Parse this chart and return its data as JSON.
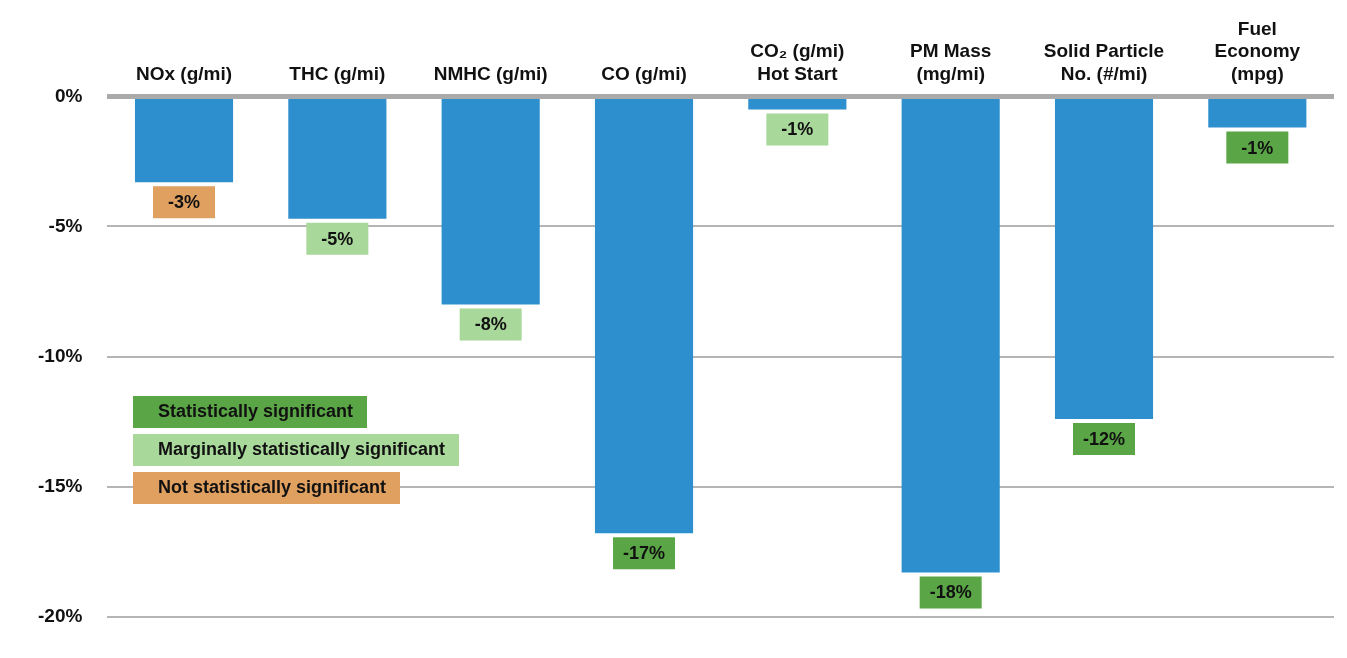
{
  "chart_data": {
    "type": "bar",
    "categories": [
      "NOx (g/mi)",
      "THC (g/mi)",
      "NMHC (g/mi)",
      "CO (g/mi)",
      "CO₂ (g/mi)\nHot Start",
      "PM Mass\n(mg/mi)",
      "Solid Particle\nNo. (#/mi)",
      "Fuel\nEconomy\n(mpg)"
    ],
    "series": [
      {
        "color": "#2e8fcf",
        "values": [
          -3.3,
          -4.7,
          -8.0,
          -16.8,
          -0.5,
          -18.3,
          -12.4,
          -1.2
        ]
      },
      {
        "name": "Statistically significant",
        "color": "#5aa646",
        "values": [
          null,
          null,
          null,
          null,
          null,
          null,
          null,
          null
        ],
        "value_labels": [
          null,
          null,
          null,
          "-17%",
          null,
          "-18%",
          "-12%",
          "-1%"
        ]
      },
      {
        "name": "Marginally statistically significant",
        "color": "#a8d89a",
        "values": [
          null,
          null,
          null,
          null,
          null,
          null,
          null,
          null
        ],
        "value_labels": [
          null,
          "-5%",
          "-8%",
          null,
          "-1%",
          null,
          null,
          null
        ]
      },
      {
        "name": "Not statistically significant",
        "color": "#e0a060",
        "values": [
          null,
          null,
          null,
          null,
          null,
          null,
          null,
          null
        ],
        "value_labels": [
          "-3%",
          null,
          null,
          null,
          null,
          null,
          null,
          null
        ]
      }
    ],
    "ylim": [
      -20,
      0
    ],
    "yticks": [
      {
        "value": 0,
        "label": "0%"
      },
      {
        "value": -5,
        "label": "-5%"
      },
      {
        "value": -10,
        "label": "-10%"
      },
      {
        "value": -15,
        "label": "-15%"
      },
      {
        "value": -20,
        "label": "-20%"
      }
    ],
    "grid": "y",
    "legend": "left"
  }
}
